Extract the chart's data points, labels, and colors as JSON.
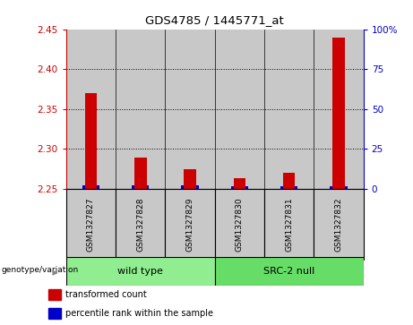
{
  "title": "GDS4785 / 1445771_at",
  "samples": [
    "GSM1327827",
    "GSM1327828",
    "GSM1327829",
    "GSM1327830",
    "GSM1327831",
    "GSM1327832"
  ],
  "red_values": [
    2.37,
    2.289,
    2.274,
    2.263,
    2.27,
    2.44
  ],
  "blue_values": [
    2.254,
    2.254,
    2.254,
    2.253,
    2.253,
    2.253
  ],
  "ylim": [
    2.25,
    2.45
  ],
  "yticks": [
    2.25,
    2.3,
    2.35,
    2.4,
    2.45
  ],
  "right_ytick_labels": [
    "0",
    "25",
    "50",
    "75",
    "100%"
  ],
  "right_ytick_vals": [
    0,
    25,
    50,
    75,
    100
  ],
  "right_ylim": [
    0,
    100
  ],
  "bar_width": 0.35,
  "red_color": "#cc0000",
  "blue_color": "#0000cc",
  "col_bg_color": "#c8c8c8",
  "left_tick_color": "#cc0000",
  "right_tick_color": "#0000cc",
  "grid_lines": [
    2.3,
    2.35,
    2.4
  ],
  "group_labels": [
    "wild type",
    "SRC-2 null"
  ],
  "group_colors": [
    "#90ee90",
    "#66dd66"
  ],
  "group_sizes": [
    3,
    3
  ],
  "genotype_label": "genotype/variation",
  "legend_items": [
    {
      "label": "transformed count",
      "color": "#cc0000"
    },
    {
      "label": "percentile rank within the sample",
      "color": "#0000cc"
    }
  ]
}
